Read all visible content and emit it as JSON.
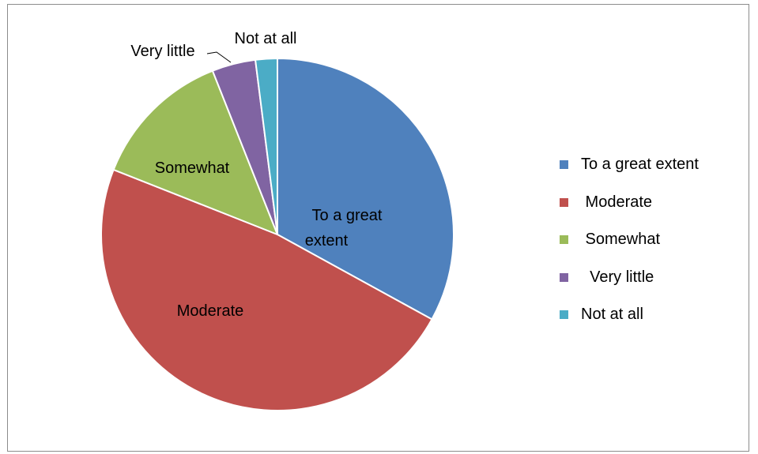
{
  "chart_data": {
    "type": "pie",
    "categories": [
      "To a great extent",
      "Moderate",
      "Somewhat",
      "Very little",
      "Not at all"
    ],
    "values": [
      33,
      48,
      13,
      4,
      2
    ],
    "colors": [
      "#4F81BD",
      "#C0504D",
      "#9BBB59",
      "#8064A2",
      "#4BACC6"
    ],
    "slice_labels": [
      "To a great extent",
      "Moderate",
      "Somewhat",
      "Very little",
      "Not at all"
    ],
    "legend_labels": [
      "To a great extent",
      " Moderate",
      " Somewhat",
      "  Very little",
      "Not at all"
    ],
    "legend_position": "right",
    "start_angle": "12 o'clock",
    "direction": "clockwise"
  }
}
